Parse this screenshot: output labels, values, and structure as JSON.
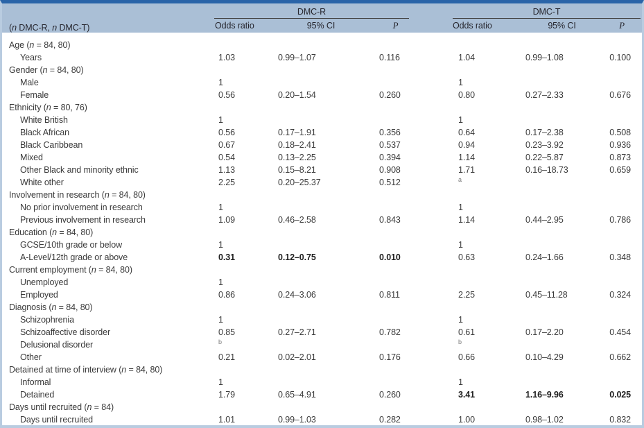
{
  "table": {
    "corner_header": "(n DMC-R, n DMC-T)",
    "group_headers": {
      "left": "DMC-R",
      "right": "DMC-T"
    },
    "sub_headers": {
      "odds": "Odds ratio",
      "ci": "95% CI",
      "p": "P"
    },
    "colors": {
      "top_bar": "#2a64a8",
      "header_band": "#aabfd6",
      "frame_border": "#b9cce0",
      "rule": "#3f3f3f",
      "text": "#3a3a3a"
    },
    "rows": [
      {
        "type": "group",
        "label": "Age (n = 84, 80)"
      },
      {
        "type": "item",
        "label": "Years",
        "r": [
          "1.03",
          "0.99–1.07",
          "0.116"
        ],
        "t": [
          "1.04",
          "0.99–1.08",
          "0.100"
        ]
      },
      {
        "type": "group",
        "label": "Gender (n = 84, 80)"
      },
      {
        "type": "item",
        "label": "Male",
        "r": [
          "1",
          "",
          ""
        ],
        "t": [
          "1",
          "",
          ""
        ]
      },
      {
        "type": "item",
        "label": "Female",
        "r": [
          "0.56",
          "0.20–1.54",
          "0.260"
        ],
        "t": [
          "0.80",
          "0.27–2.33",
          "0.676"
        ]
      },
      {
        "type": "group",
        "label": "Ethnicity (n = 80, 76)"
      },
      {
        "type": "item",
        "label": "White British",
        "r": [
          "1",
          "",
          ""
        ],
        "t": [
          "1",
          "",
          ""
        ]
      },
      {
        "type": "item",
        "label": "Black African",
        "r": [
          "0.56",
          "0.17–1.91",
          "0.356"
        ],
        "t": [
          "0.64",
          "0.17–2.38",
          "0.508"
        ]
      },
      {
        "type": "item",
        "label": "Black Caribbean",
        "r": [
          "0.67",
          "0.18–2.41",
          "0.537"
        ],
        "t": [
          "0.94",
          "0.23–3.92",
          "0.936"
        ]
      },
      {
        "type": "item",
        "label": "Mixed",
        "r": [
          "0.54",
          "0.13–2.25",
          "0.394"
        ],
        "t": [
          "1.14",
          "0.22–5.87",
          "0.873"
        ]
      },
      {
        "type": "item",
        "label": "Other Black and minority ethnic",
        "r": [
          "1.13",
          "0.15–8.21",
          "0.908"
        ],
        "t": [
          "1.71",
          "0.16–18.73",
          "0.659"
        ]
      },
      {
        "type": "item",
        "label": "White other",
        "r": [
          "2.25",
          "0.20–25.37",
          "0.512"
        ],
        "t": [
          "",
          "",
          ""
        ],
        "t_sup": "a"
      },
      {
        "type": "group",
        "label": "Involvement in research (n = 84, 80)"
      },
      {
        "type": "item",
        "label": "No prior involvement in research",
        "r": [
          "1",
          "",
          ""
        ],
        "t": [
          "1",
          "",
          ""
        ]
      },
      {
        "type": "item",
        "label": "Previous involvement in research",
        "r": [
          "1.09",
          "0.46–2.58",
          "0.843"
        ],
        "t": [
          "1.14",
          "0.44–2.95",
          "0.786"
        ]
      },
      {
        "type": "group",
        "label": "Education (n = 84, 80)"
      },
      {
        "type": "item",
        "label": "GCSE/10th grade or below",
        "r": [
          "1",
          "",
          ""
        ],
        "t": [
          "1",
          "",
          ""
        ]
      },
      {
        "type": "item",
        "label": "A-Level/12th grade or above",
        "r": [
          "0.31",
          "0.12–0.75",
          "0.010"
        ],
        "r_bold": true,
        "t": [
          "0.63",
          "0.24–1.66",
          "0.348"
        ]
      },
      {
        "type": "group",
        "label": "Current employment (n = 84, 80)"
      },
      {
        "type": "item",
        "label": "Unemployed",
        "r": [
          "1",
          "",
          ""
        ],
        "t": [
          "",
          "",
          ""
        ]
      },
      {
        "type": "item",
        "label": "Employed",
        "r": [
          "0.86",
          "0.24–3.06",
          "0.811"
        ],
        "t": [
          "2.25",
          "0.45–11.28",
          "0.324"
        ]
      },
      {
        "type": "group",
        "label": "Diagnosis (n = 84, 80)"
      },
      {
        "type": "item",
        "label": "Schizophrenia",
        "r": [
          "1",
          "",
          ""
        ],
        "t": [
          "1",
          "",
          ""
        ]
      },
      {
        "type": "item",
        "label": "Schizoaffective disorder",
        "r": [
          "0.85",
          "0.27–2.71",
          "0.782"
        ],
        "t": [
          "0.61",
          "0.17–2.20",
          "0.454"
        ]
      },
      {
        "type": "item",
        "label": "Delusional disorder",
        "r": [
          "",
          "",
          ""
        ],
        "r_sup": "b",
        "t": [
          "",
          "",
          ""
        ],
        "t_sup": "b"
      },
      {
        "type": "item",
        "label": "Other",
        "r": [
          "0.21",
          "0.02–2.01",
          "0.176"
        ],
        "t": [
          "0.66",
          "0.10–4.29",
          "0.662"
        ]
      },
      {
        "type": "group",
        "label": "Detained at time of interview (n = 84, 80)"
      },
      {
        "type": "item",
        "label": "Informal",
        "r": [
          "1",
          "",
          ""
        ],
        "t": [
          "1",
          "",
          ""
        ]
      },
      {
        "type": "item",
        "label": "Detained",
        "r": [
          "1.79",
          "0.65–4.91",
          "0.260"
        ],
        "t": [
          "3.41",
          "1.16–9.96",
          "0.025"
        ],
        "t_bold": true
      },
      {
        "type": "group",
        "label": "Days until recruited (n = 84)"
      },
      {
        "type": "item",
        "label": "Days until recruited",
        "r": [
          "1.01",
          "0.99–1.03",
          "0.282"
        ],
        "t": [
          "1.00",
          "0.98–1.02",
          "0.832"
        ]
      }
    ]
  }
}
